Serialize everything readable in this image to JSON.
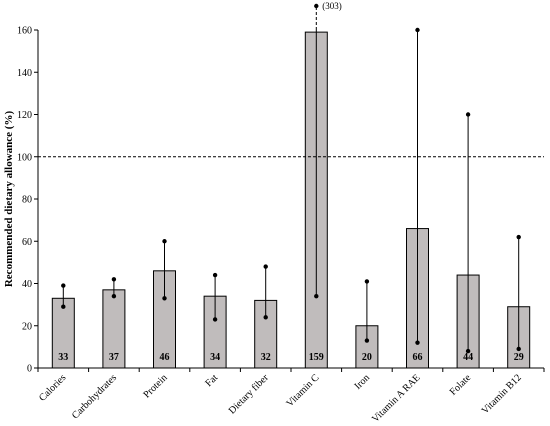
{
  "chart_data": {
    "type": "bar",
    "title": "",
    "xlabel": "",
    "ylabel": "Recommended dietary allowance (%)",
    "ylim": [
      0,
      160
    ],
    "yticks": [
      0,
      20,
      40,
      60,
      80,
      100,
      120,
      140,
      160
    ],
    "reference_line": {
      "value": 100,
      "style": "dashed"
    },
    "grid": false,
    "categories": [
      "Calories",
      "Carbohydrates",
      "Protein",
      "Fat",
      "Dietary fiber",
      "Vitamin C",
      "Iron",
      "Vitamin A RAE",
      "Folate",
      "Vitamin B12"
    ],
    "values": [
      33,
      37,
      46,
      34,
      32,
      159,
      20,
      66,
      44,
      29
    ],
    "value_labels": [
      "33",
      "37",
      "46",
      "34",
      "32",
      "159",
      "20",
      "66",
      "44",
      "29"
    ],
    "range_low": [
      29,
      34,
      33,
      23,
      24,
      34,
      13,
      12,
      8,
      9
    ],
    "range_high": [
      39,
      42,
      60,
      44,
      48,
      303,
      41,
      160,
      120,
      62
    ],
    "off_scale_annotation": {
      "category": "Vitamin C",
      "text": "(303)"
    },
    "bar_color": "#c0bcbc",
    "bar_edge_color": "#000000"
  }
}
